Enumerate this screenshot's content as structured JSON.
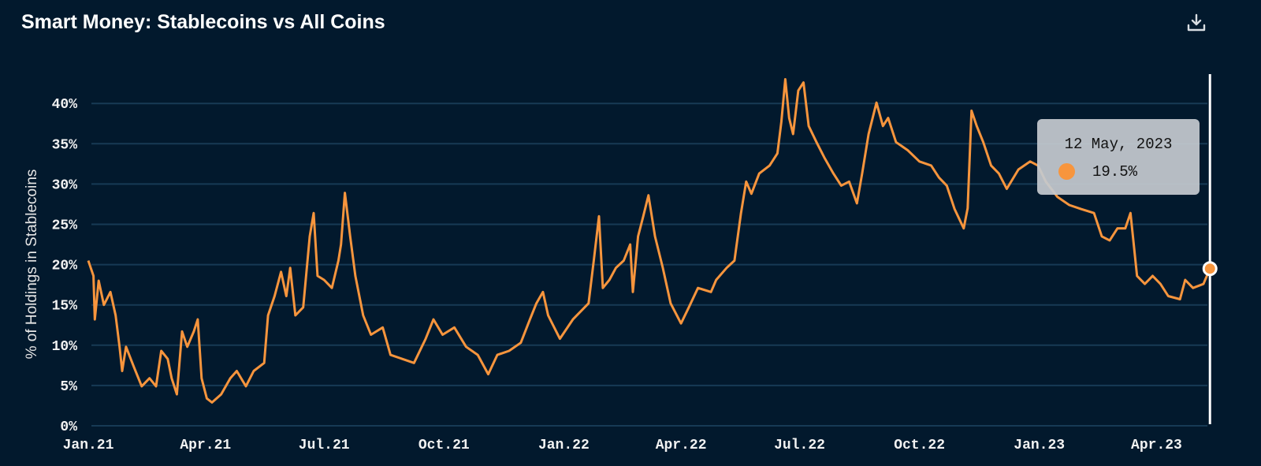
{
  "title": "Smart Money: Stablecoins vs All Coins",
  "download_icon": "download-icon",
  "tooltip": {
    "date": "12 May, 2023",
    "value": "19.5%"
  },
  "colors": {
    "background": "#02192d",
    "line": "#f7953d",
    "grid": "#173a55",
    "cursor": "#ffffff"
  },
  "chart_data": {
    "type": "line",
    "title": "Smart Money: Stablecoins vs All Coins",
    "xlabel": "",
    "ylabel": "% of Holdings in Stablecoins",
    "x_unit": "days since 2021-01-01",
    "xlim": [
      0,
      861
    ],
    "ylim": [
      0,
      44
    ],
    "grid": true,
    "y_ticks": [
      0,
      5,
      10,
      15,
      20,
      25,
      30,
      35,
      40
    ],
    "y_tick_labels": [
      "0%",
      "5%",
      "10%",
      "15%",
      "20%",
      "25%",
      "30%",
      "35%",
      "40%"
    ],
    "x_ticks": [
      0,
      90,
      181,
      273,
      365,
      455,
      546,
      638,
      730,
      820
    ],
    "x_tick_labels": [
      "Jan.21",
      "Apr.21",
      "Jul.21",
      "Oct.21",
      "Jan.22",
      "Apr.22",
      "Jul.22",
      "Oct.22",
      "Jan.23",
      "Apr.23"
    ],
    "series": [
      {
        "name": "% of Holdings in Stablecoins",
        "x": [
          0,
          4,
          5,
          8,
          12,
          17,
          21,
          24,
          26,
          29,
          35,
          41,
          47,
          52,
          56,
          61,
          64,
          68,
          72,
          76,
          81,
          84,
          87,
          91,
          95,
          102,
          109,
          114,
          121,
          127,
          135,
          138,
          143,
          148,
          152,
          155,
          159,
          165,
          170,
          173,
          176,
          181,
          187,
          192,
          194,
          197,
          201,
          205,
          211,
          217,
          226,
          232,
          241,
          250,
          259,
          265,
          272,
          281,
          290,
          299,
          307,
          314,
          323,
          332,
          339,
          344,
          349,
          353,
          362,
          372,
          378,
          384,
          388,
          392,
          395,
          400,
          405,
          411,
          416,
          418,
          422,
          426,
          430,
          435,
          441,
          447,
          455,
          461,
          468,
          478,
          482,
          490,
          496,
          501,
          505,
          509,
          515,
          523,
          529,
          532,
          535,
          538,
          541,
          545,
          549,
          553,
          559,
          565,
          572,
          578,
          584,
          590,
          594,
          599,
          605,
          610,
          614,
          620,
          629,
          638,
          647,
          653,
          659,
          665,
          672,
          675,
          678,
          682,
          687,
          693,
          699,
          705,
          714,
          723,
          729,
          735,
          744,
          753,
          762,
          772,
          778,
          784,
          790,
          796,
          800,
          805,
          811,
          817,
          823,
          829,
          838,
          842,
          848,
          856,
          861
        ],
        "values": [
          20.5,
          18.6,
          13.2,
          18,
          15,
          16.6,
          13.7,
          9.8,
          6.8,
          9.8,
          7.3,
          4.9,
          5.9,
          4.9,
          9.3,
          8.3,
          5.9,
          3.9,
          11.7,
          9.8,
          11.7,
          13.2,
          5.9,
          3.4,
          2.9,
          3.9,
          5.9,
          6.8,
          4.9,
          6.8,
          7.8,
          13.7,
          16.1,
          19.1,
          16.1,
          19.6,
          13.7,
          14.7,
          23.5,
          26.4,
          18.6,
          18.1,
          17.1,
          20.5,
          22.5,
          28.9,
          23.5,
          18.6,
          13.7,
          11.3,
          12.2,
          8.8,
          8.3,
          7.8,
          10.8,
          13.2,
          11.3,
          12.2,
          9.8,
          8.8,
          6.4,
          8.8,
          9.3,
          10.3,
          13.2,
          15.2,
          16.6,
          13.7,
          10.8,
          13.2,
          14.2,
          15.2,
          20.5,
          26,
          17.1,
          18.1,
          19.6,
          20.5,
          22.5,
          16.6,
          23.5,
          26,
          28.6,
          23.5,
          19.6,
          15.2,
          12.7,
          14.7,
          17.1,
          16.6,
          18.1,
          19.6,
          20.5,
          26.4,
          30.3,
          28.8,
          31.3,
          32.3,
          33.8,
          37.7,
          43,
          38.2,
          36.2,
          41.6,
          42.6,
          37.2,
          35.2,
          33.3,
          31.3,
          29.8,
          30.3,
          27.6,
          31.3,
          36.2,
          40.1,
          37.2,
          38.2,
          35.2,
          34.2,
          32.8,
          32.3,
          30.8,
          29.8,
          26.9,
          24.5,
          27,
          39.1,
          37.2,
          35.2,
          32.3,
          31.3,
          29.4,
          31.8,
          32.8,
          32.3,
          30.3,
          28.4,
          27.4,
          26.9,
          26.4,
          23.5,
          23,
          24.5,
          24.5,
          26.4,
          18.6,
          17.6,
          18.6,
          17.6,
          16.1,
          15.7,
          18.1,
          17.1,
          17.6,
          19.5
        ]
      }
    ],
    "legend": "none",
    "highlighted_point": {
      "x": 861,
      "value": 19.5
    }
  }
}
